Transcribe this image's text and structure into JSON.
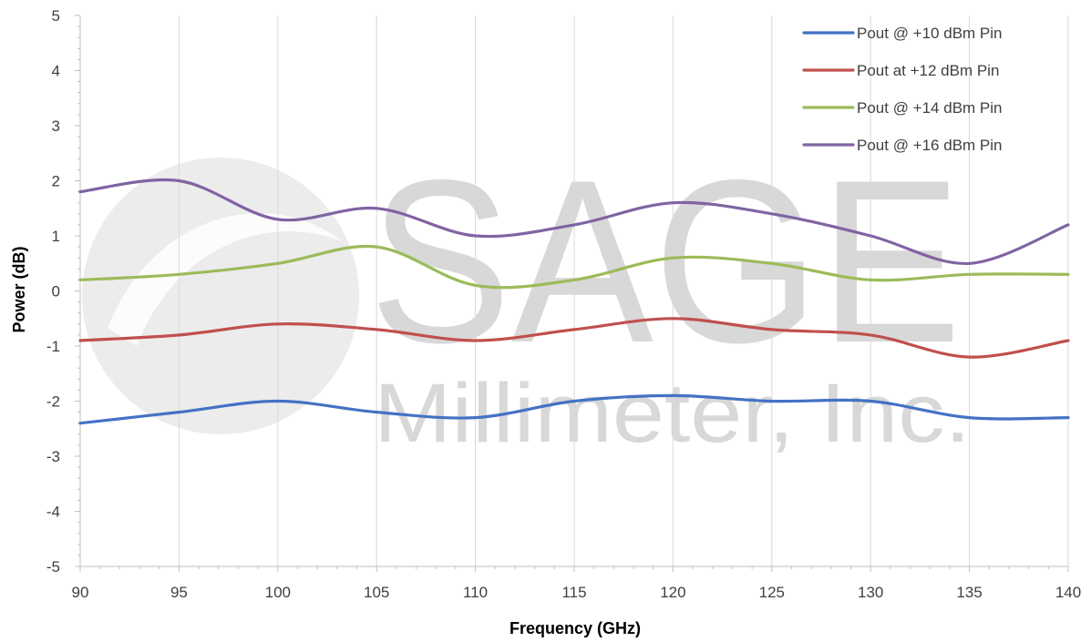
{
  "chart_data": {
    "type": "line",
    "title": "",
    "xlabel": "Frequency (GHz)",
    "ylabel": "Power (dB)",
    "xlim": [
      90,
      140
    ],
    "ylim": [
      -5,
      5
    ],
    "x_ticks": [
      90,
      95,
      100,
      105,
      110,
      115,
      120,
      125,
      130,
      135,
      140
    ],
    "y_ticks": [
      -5,
      -4,
      -3,
      -2,
      -1,
      0,
      1,
      2,
      3,
      4,
      5
    ],
    "grid": "vertical",
    "legend_position": "top-right",
    "x": [
      90,
      95,
      100,
      105,
      110,
      115,
      120,
      125,
      130,
      135,
      140
    ],
    "series": [
      {
        "name": "Pout @ +10 dBm Pin",
        "color": "#4472c4",
        "values": [
          -2.4,
          -2.2,
          -2.0,
          -2.2,
          -2.3,
          -2.0,
          -1.9,
          -2.0,
          -2.0,
          -2.3,
          -2.3
        ]
      },
      {
        "name": "Pout at +12 dBm Pin",
        "color": "#c0504d",
        "values": [
          -0.9,
          -0.8,
          -0.6,
          -0.7,
          -0.9,
          -0.7,
          -0.5,
          -0.7,
          -0.8,
          -1.2,
          -0.9
        ]
      },
      {
        "name": "Pout @ +14 dBm Pin",
        "color": "#9bbb59",
        "values": [
          0.2,
          0.3,
          0.5,
          0.8,
          0.1,
          0.2,
          0.6,
          0.5,
          0.2,
          0.3,
          0.3
        ]
      },
      {
        "name": "Pout @ +16 dBm Pin",
        "color": "#8064a2",
        "values": [
          1.8,
          2.0,
          1.3,
          1.5,
          1.0,
          1.2,
          1.6,
          1.4,
          1.0,
          0.5,
          1.2
        ]
      }
    ]
  },
  "watermark": {
    "brand": "SAGE",
    "company": "Millimeter, Inc."
  }
}
